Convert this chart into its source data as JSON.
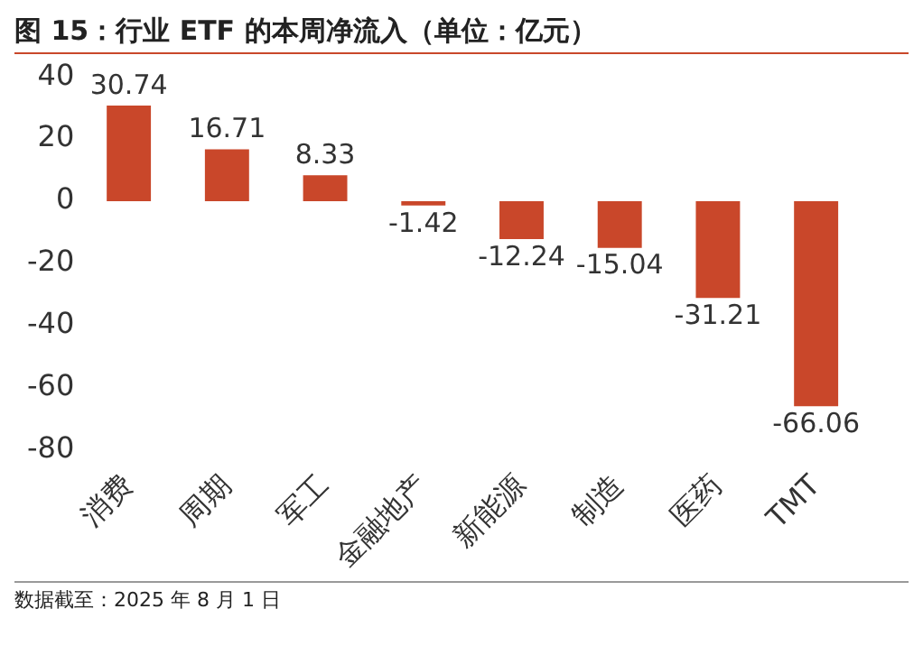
{
  "chart_data": {
    "type": "bar",
    "title": "图 15：行业 ETF 的本周净流入（单位：亿元）",
    "categories": [
      "消费",
      "周期",
      "军工",
      "金融地产",
      "新能源",
      "制造",
      "医药",
      "TMT"
    ],
    "values": [
      30.74,
      16.71,
      8.33,
      -1.42,
      -12.24,
      -15.04,
      -31.21,
      -66.06
    ],
    "color": "#c9472a",
    "ylim": [
      -80,
      40
    ],
    "yticks": [
      -80,
      -60,
      -40,
      -20,
      0,
      20,
      40
    ],
    "grid": false,
    "data_labels": true,
    "annotations": [
      "数据截至：2025 年 8 月 1 日"
    ]
  }
}
